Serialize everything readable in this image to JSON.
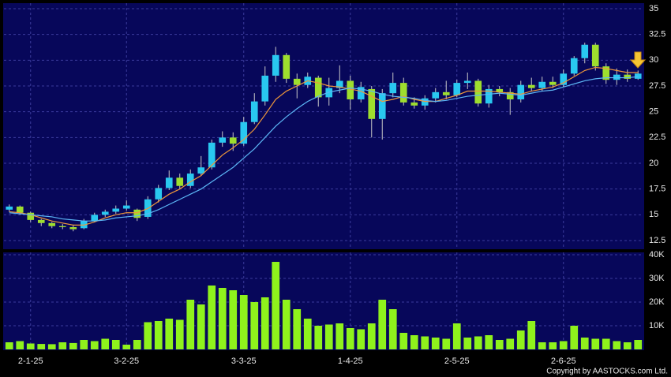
{
  "chart_data": [
    {
      "type": "candlestick",
      "open": [
        15.5,
        15.8,
        15.2,
        14.5,
        14.2,
        13.9,
        13.8,
        13.7,
        14.4,
        15,
        15.3,
        15.6,
        15.5,
        14.8,
        16.5,
        17.6,
        18.6,
        17.8,
        19,
        19.6,
        22,
        22.5,
        21.9,
        24,
        26,
        28.5,
        30.5,
        28.2,
        27.6,
        28.3,
        26.4,
        27.3,
        28,
        26.2,
        27.2,
        24.3,
        26.8,
        27.8,
        25.9,
        25.6,
        26.3,
        26.9,
        26.6,
        27.8,
        28,
        25.8,
        27.2,
        26.9,
        26.2,
        27.6,
        27.3,
        27.9,
        27.6,
        28.7,
        30.2,
        31.5,
        29.4,
        28.1,
        28.6,
        28.2
      ],
      "high": [
        16,
        15.9,
        15.3,
        14.6,
        14.3,
        14.1,
        14,
        14.6,
        15.2,
        15.5,
        15.9,
        16.4,
        15.6,
        16.8,
        17.9,
        19.3,
        19,
        19.4,
        20.7,
        22.3,
        23.1,
        23,
        24.5,
        26.8,
        29.4,
        31.3,
        30.7,
        28.7,
        28.8,
        28.5,
        28.3,
        29.5,
        28.5,
        27.9,
        27.5,
        27.2,
        28.8,
        28.3,
        26.4,
        26.6,
        27.3,
        28,
        28.1,
        28.8,
        28.2,
        27.6,
        27.5,
        27.3,
        28,
        28.3,
        28.4,
        28.4,
        29.1,
        30.4,
        31.7,
        31.7,
        29.7,
        29.2,
        29.1,
        29
      ],
      "low": [
        15.3,
        15,
        14.3,
        13.9,
        13.7,
        13.6,
        13.4,
        13.6,
        14.3,
        14.8,
        15.1,
        15.4,
        14.4,
        14.6,
        16.2,
        17.4,
        17.5,
        17.6,
        18.8,
        19.4,
        21.6,
        21.2,
        21.7,
        23.8,
        25.6,
        27.9,
        27.8,
        26.3,
        27.3,
        25.5,
        25.6,
        26.8,
        25.2,
        25.9,
        22.5,
        22.3,
        26.4,
        25.6,
        25.3,
        25.2,
        25.9,
        26.2,
        26.4,
        27.2,
        25.5,
        25.4,
        26.5,
        24.7,
        25.9,
        27,
        27,
        27.3,
        27.4,
        28.5,
        29.7,
        29,
        27.7,
        27.6,
        27.9,
        28.1
      ],
      "close": [
        15.8,
        15.2,
        14.5,
        14.2,
        13.9,
        13.8,
        13.6,
        14.4,
        15,
        15.3,
        15.6,
        15.9,
        14.7,
        16.5,
        17.6,
        18.6,
        17.8,
        19,
        19.6,
        22,
        22.5,
        21.9,
        24,
        26,
        28.5,
        30.5,
        28.2,
        27.6,
        28.4,
        26.4,
        27.3,
        28,
        26.2,
        27.4,
        24.3,
        26.8,
        27.8,
        25.9,
        25.6,
        26.3,
        26.9,
        26.6,
        27.8,
        28,
        25.8,
        27.2,
        26.9,
        26.2,
        27.6,
        27.3,
        27.9,
        27.6,
        28.7,
        30.2,
        31.5,
        29.4,
        28.1,
        28.6,
        28.2,
        28.7
      ],
      "up_color": "#29c8f0",
      "down_color": "#9ede2e",
      "series": [
        {
          "color": "#f0983a",
          "values": [
            15.3,
            15.2,
            15,
            14.7,
            14.4,
            14.2,
            14.0,
            14.0,
            14.3,
            14.7,
            15,
            15.2,
            15.2,
            15.6,
            16.3,
            17,
            17.5,
            18.2,
            18.8,
            19.8,
            20.8,
            21.5,
            22.3,
            23.3,
            24.7,
            26.2,
            27,
            27.5,
            28,
            27.8,
            27.5,
            27.4,
            27.2,
            27,
            26.5,
            26,
            26.2,
            26.5,
            26.2,
            26,
            26,
            26.3,
            26.6,
            27,
            27,
            27,
            26.9,
            26.8,
            26.7,
            27,
            27.2,
            27.4,
            27.8,
            28.4,
            29,
            29.3,
            29.2,
            29,
            28.8,
            28.8
          ]
        },
        {
          "color": "#5cb6f5",
          "values": [
            15.2,
            15.1,
            15,
            14.9,
            14.8,
            14.6,
            14.5,
            14.4,
            14.4,
            14.5,
            14.7,
            14.8,
            14.9,
            15.1,
            15.5,
            16,
            16.5,
            17,
            17.5,
            18.2,
            18.9,
            19.6,
            20.5,
            21.4,
            22.5,
            23.6,
            24.5,
            25.3,
            26,
            26.5,
            26.9,
            27.1,
            27.3,
            27.2,
            27,
            26.7,
            26.5,
            26.4,
            26.3,
            26.1,
            26,
            26.1,
            26.3,
            26.5,
            26.6,
            26.7,
            26.8,
            26.7,
            26.6,
            26.8,
            27,
            27.1,
            27.4,
            27.7,
            28,
            28.2,
            28.3,
            28.3,
            28.3,
            28.4
          ]
        }
      ],
      "ylim": [
        12.5,
        35
      ],
      "yticks": [
        12.5,
        15,
        17.5,
        20,
        22.5,
        25,
        27.5,
        30,
        32.5,
        35
      ],
      "grid": true
    },
    {
      "type": "bar",
      "categories": [
        null,
        null,
        "2-1-25",
        null,
        null,
        null,
        null,
        null,
        null,
        null,
        null,
        "3-2-25",
        null,
        null,
        null,
        null,
        null,
        null,
        null,
        null,
        null,
        null,
        "3-3-25",
        null,
        null,
        null,
        null,
        null,
        null,
        null,
        null,
        null,
        "1-4-25",
        null,
        null,
        null,
        null,
        null,
        null,
        null,
        null,
        null,
        "2-5-25",
        null,
        null,
        null,
        null,
        null,
        null,
        null,
        null,
        null,
        "2-6-25",
        null,
        null,
        null,
        null,
        null,
        null,
        null
      ],
      "values": [
        3000,
        3500,
        2500,
        2300,
        2200,
        3000,
        2700,
        4000,
        3500,
        4500,
        4000,
        2000,
        4000,
        11500,
        12000,
        13000,
        12500,
        21000,
        19000,
        27000,
        26000,
        25000,
        23000,
        20000,
        22000,
        37000,
        21000,
        17000,
        13000,
        10000,
        10500,
        11000,
        9000,
        8500,
        11000,
        21000,
        17000,
        7000,
        6000,
        5500,
        5000,
        4500,
        11000,
        5000,
        5500,
        6000,
        4000,
        4500,
        8000,
        12000,
        3000,
        3000,
        3500,
        10000,
        5000,
        4500,
        4500,
        3500,
        3000,
        4000
      ],
      "color": "#8ff21c",
      "ylim": [
        0,
        40000
      ],
      "yticks": [
        {
          "value": 10000,
          "label": "10K"
        },
        {
          "value": 20000,
          "label": "20K"
        },
        {
          "value": 30000,
          "label": "30K"
        },
        {
          "value": 40000,
          "label": "40K"
        }
      ],
      "grid": true,
      "footnote": "Copyright by AASTOCKS.com Ltd."
    }
  ]
}
